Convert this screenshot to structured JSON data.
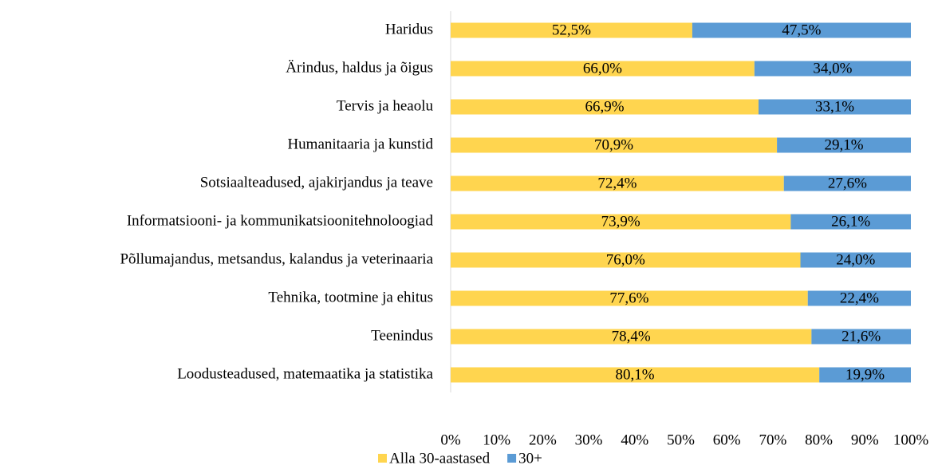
{
  "chart_data": {
    "type": "stacked_bar_horizontal",
    "categories": [
      "Haridus",
      "Ärindus, haldus ja õigus",
      "Tervis ja heaolu",
      "Humanitaaria ja kunstid",
      "Sotsiaalteadused, ajakirjandus ja teave",
      "Informatsiooni- ja kommunikatsioonitehnoloogiad",
      "Põllumajandus, metsandus, kalandus ja veterinaaria",
      "Tehnika, tootmine ja ehitus",
      "Teenindus",
      "Loodusteadused, matemaatika ja statistika"
    ],
    "series": [
      {
        "name": "Alla 30-aastased",
        "color": "#FFD54F",
        "values": [
          52.5,
          66.0,
          66.9,
          70.9,
          72.4,
          73.9,
          76.0,
          77.6,
          78.4,
          80.1
        ],
        "value_labels": [
          "52,5%",
          "66,0%",
          "66,9%",
          "70,9%",
          "72,4%",
          "73,9%",
          "76,0%",
          "77,6%",
          "78,4%",
          "80,1%"
        ]
      },
      {
        "name": "30+",
        "color": "#5B9BD5",
        "values": [
          47.5,
          34.0,
          33.1,
          29.1,
          27.6,
          26.1,
          24.0,
          22.4,
          21.6,
          19.9
        ],
        "value_labels": [
          "47,5%",
          "34,0%",
          "33,1%",
          "29,1%",
          "27,6%",
          "26,1%",
          "24,0%",
          "22,4%",
          "21,6%",
          "19,9%"
        ]
      }
    ],
    "xlim": [
      0,
      100
    ],
    "xticks": [
      {
        "value": 0,
        "label": "0%"
      },
      {
        "value": 10,
        "label": "10%"
      },
      {
        "value": 20,
        "label": "20%"
      },
      {
        "value": 30,
        "label": "30%"
      },
      {
        "value": 40,
        "label": "40%"
      },
      {
        "value": 50,
        "label": "50%"
      },
      {
        "value": 60,
        "label": "60%"
      },
      {
        "value": 70,
        "label": "70%"
      },
      {
        "value": 80,
        "label": "80%"
      },
      {
        "value": 90,
        "label": "90%"
      },
      {
        "value": 100,
        "label": "100%"
      }
    ],
    "legend": "bottom"
  }
}
